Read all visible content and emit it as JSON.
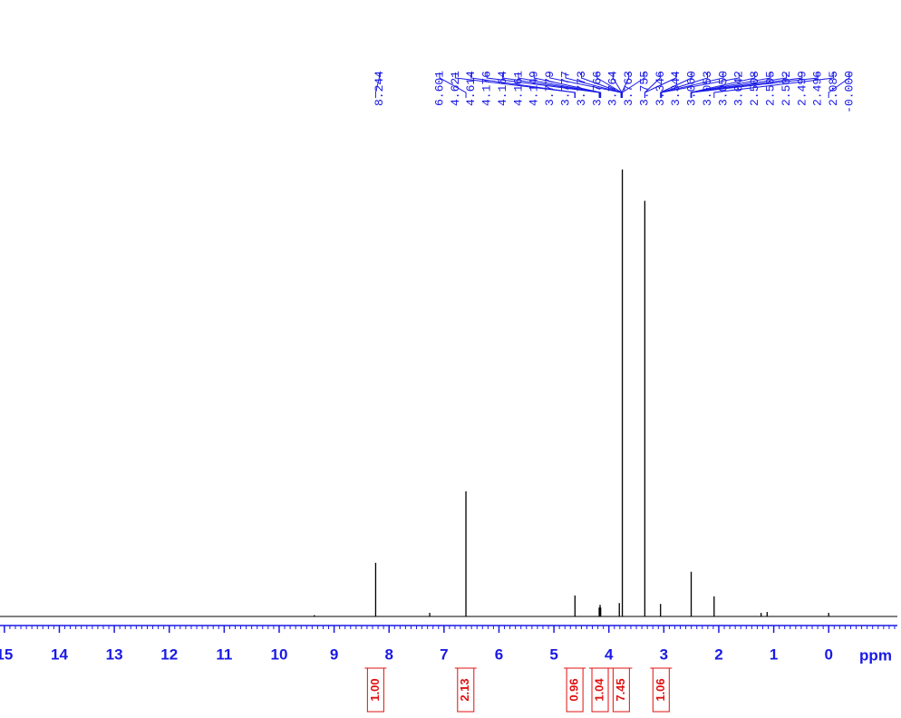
{
  "chart_data": {
    "type": "nmr",
    "x_label": "ppm",
    "xlim": [
      15.08,
      -1.25
    ],
    "xticks": [
      15,
      14,
      13,
      12,
      11,
      10,
      9,
      8,
      7,
      6,
      5,
      4,
      3,
      2,
      1,
      0
    ],
    "xminor_step": 0.1,
    "ylim": [
      0,
      100
    ],
    "color": "#000000",
    "axis_color": "#1a1ae6",
    "x": [
      9.36,
      8.244,
      7.26,
      6.601,
      4.617,
      4.176,
      4.16,
      4.149,
      3.81,
      3.755,
      3.346,
      3.06,
      2.502,
      2.085,
      1.23,
      1.12,
      0.0
    ],
    "values": [
      0.3,
      12,
      0.8,
      28,
      4.7,
      2.0,
      2.6,
      2.0,
      3.0,
      100,
      93,
      2.8,
      10,
      4.5,
      0.8,
      1.0,
      0.8
    ],
    "peak_labels": [
      8.244,
      6.601,
      4.621,
      4.614,
      4.176,
      4.164,
      4.161,
      4.149,
      3.779,
      3.777,
      3.773,
      3.766,
      3.764,
      3.763,
      3.755,
      3.346,
      3.344,
      {
        "value": 3.06,
        "label": "3.060"
      },
      3.053,
      {
        "value": 3.05,
        "label": "3.050"
      },
      3.042,
      2.508,
      2.505,
      2.502,
      2.499,
      2.496,
      2.085,
      {
        "value": 0,
        "label": "-0.000"
      }
    ],
    "integrals": [
      {
        "from": 8.3,
        "to": 8.19,
        "value": 1,
        "label": "1.00"
      },
      {
        "from": 6.66,
        "to": 6.55,
        "value": 2.13,
        "label": "2.13"
      },
      {
        "from": 4.67,
        "to": 4.57,
        "value": 0.96,
        "label": "0.96"
      },
      {
        "from": 4.22,
        "to": 4.1,
        "value": 1.04,
        "label": "1.04"
      },
      {
        "from": 3.85,
        "to": 3.7,
        "value": 7.45,
        "label": "7.45"
      },
      {
        "from": 3.1,
        "to": 3.0,
        "value": 1.06,
        "label": "1.06"
      }
    ],
    "integral_color": "#e01010"
  }
}
